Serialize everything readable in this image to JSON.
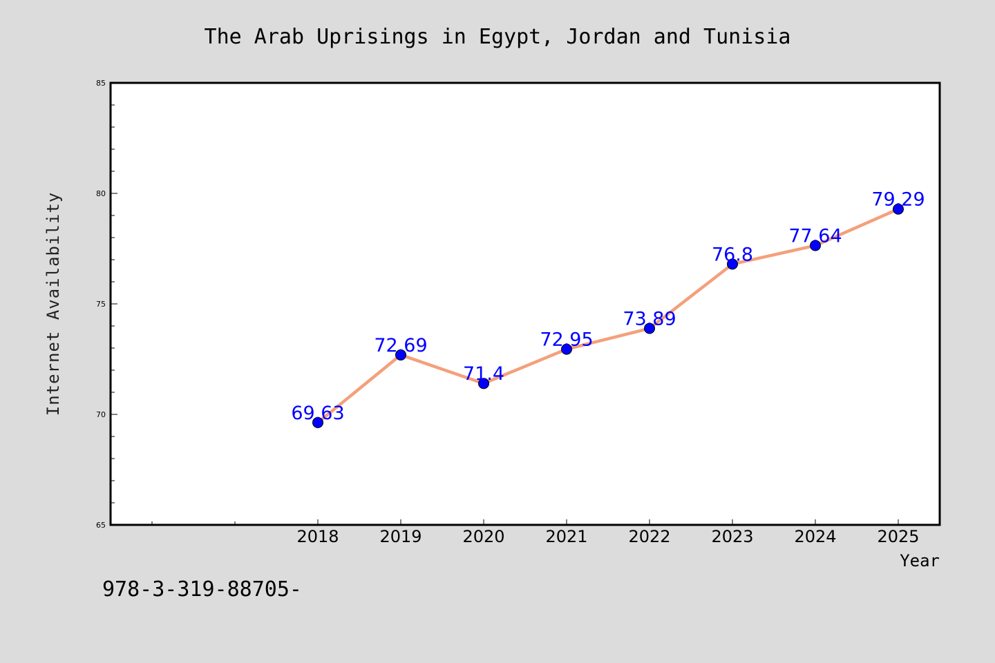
{
  "chart_data": {
    "type": "line",
    "title": "The Arab Uprisings in Egypt, Jordan and Tunisia",
    "xlabel": "Year",
    "ylabel": "Internet Availability",
    "categories": [
      "2018",
      "2019",
      "2020",
      "2021",
      "2022",
      "2023",
      "2024",
      "2025"
    ],
    "values": [
      69.63,
      72.69,
      71.4,
      72.95,
      73.89,
      76.8,
      77.64,
      79.29
    ],
    "data_labels": [
      "69.63",
      "72.69",
      "71.4",
      "72.95",
      "73.89",
      "76.8",
      "77.64",
      "79.29"
    ],
    "ylim": [
      65,
      85
    ],
    "yticks": [
      65,
      70,
      75,
      80,
      85
    ],
    "ytick_labels": [
      "65",
      "70",
      "75",
      "80",
      "85"
    ],
    "grid": false,
    "legend": "none",
    "colors": {
      "background": "#dcdcdc",
      "plot_area": "#ffffff",
      "line": "#f4a07c",
      "marker": "#0000ff",
      "data_label": "#0000ff"
    }
  },
  "footnote": "978-3-319-88705-"
}
